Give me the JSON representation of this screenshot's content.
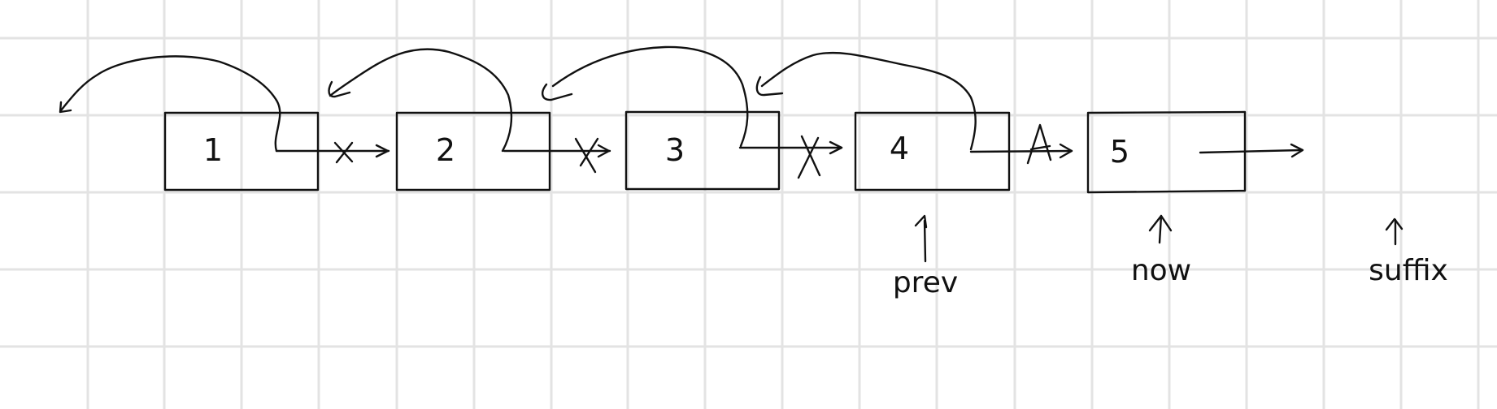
{
  "colors": {
    "background": "#ffffff",
    "grid": "#e3e3e3",
    "ink": "#111111"
  },
  "nodes": [
    {
      "value": "1"
    },
    {
      "value": "2"
    },
    {
      "value": "3"
    },
    {
      "value": "4"
    },
    {
      "value": "5"
    }
  ],
  "pointers": {
    "prev": "prev",
    "now": "now",
    "suffix": "suffix"
  }
}
